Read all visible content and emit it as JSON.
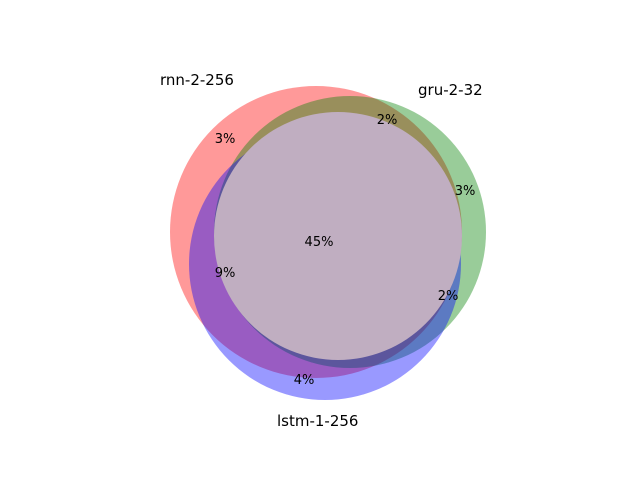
{
  "diagram": {
    "type": "venn3",
    "sets": [
      {
        "id": "A",
        "label": "rnn-2-256",
        "color": "#ff0000"
      },
      {
        "id": "B",
        "label": "gru-2-32",
        "color": "#008000"
      },
      {
        "id": "C",
        "label": "lstm-1-256",
        "color": "#0000ff"
      }
    ],
    "fill_opacity": 0.4,
    "regions": [
      {
        "sets": "A",
        "label": "3%"
      },
      {
        "sets": "AB",
        "label": "2%"
      },
      {
        "sets": "B",
        "label": "3%"
      },
      {
        "sets": "BC",
        "label": "2%"
      },
      {
        "sets": "AC",
        "label": "9%"
      },
      {
        "sets": "C",
        "label": "4%"
      },
      {
        "sets": "ABC",
        "label": "45%"
      }
    ]
  }
}
